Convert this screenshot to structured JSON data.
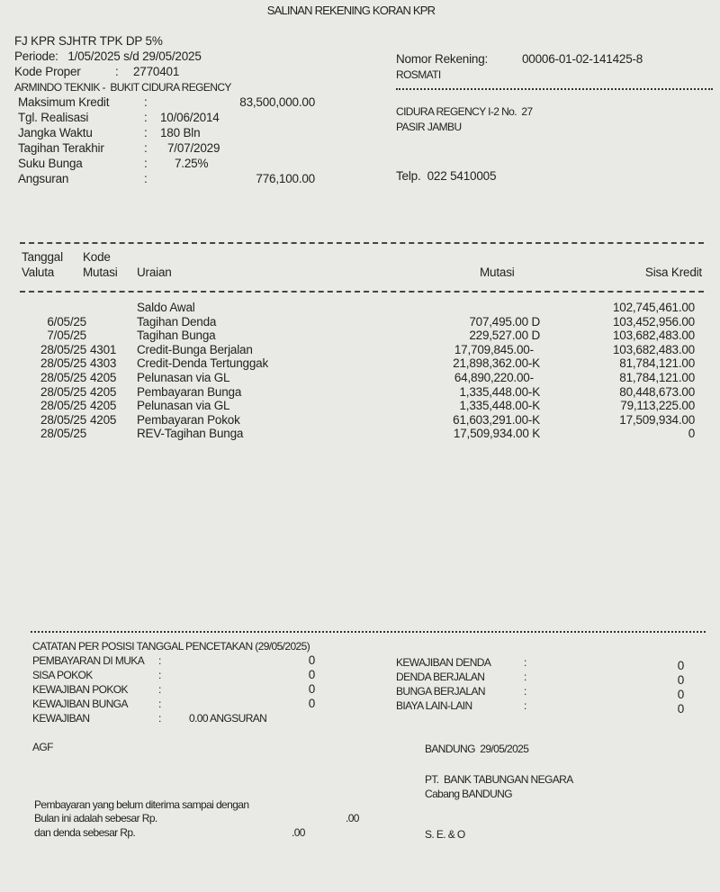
{
  "title": "SALINAN REKENING KORAN KPR",
  "header_left": {
    "product": "FJ KPR SJHTR TPK DP 5%",
    "periode": "Periode:   1/05/2025 s/d 29/05/2025",
    "kode_proper_label": "Kode Proper",
    "kode_proper": "2770401",
    "project": "ARMINDO TEKNIK -  BUKIT CIDURA REGENCY",
    "fields": [
      {
        "label": "Maksimum Kredit",
        "value": "83,500,000.00"
      },
      {
        "label": "Tgl. Realisasi",
        "value": "10/06/2014"
      },
      {
        "label": "Jangka Waktu",
        "value": "180 Bln"
      },
      {
        "label": "Tagihan Terakhir",
        "value": "7/07/2029"
      },
      {
        "label": "Suku Bunga",
        "value": "7.25%"
      },
      {
        "label": "Angsuran",
        "value": "776,100.00"
      }
    ]
  },
  "header_right": {
    "account_label": "Nomor Rekening:",
    "account_number": "00006-01-02-141425-8",
    "name": "ROSMATI",
    "address1": "CIDURA REGENCY I-2 No.  27",
    "address2": "PASIR JAMBU",
    "phone": "Telp.  022 5410005"
  },
  "table": {
    "headers": {
      "tanggal": "Tanggal",
      "valuta": "Valuta",
      "kode": "Kode",
      "mutasi_code": "Mutasi",
      "uraian": "Uraian",
      "mutasi": "Mutasi",
      "sisa": "Sisa Kredit"
    },
    "rows": [
      {
        "date": "",
        "code": "",
        "desc": "Saldo Awal",
        "mutasi": "",
        "sisa": "102,745,461.00"
      },
      {
        "date": "6/05/25",
        "code": "",
        "desc": "Tagihan Denda",
        "mutasi": "707,495.00 D",
        "sisa": "103,452,956.00"
      },
      {
        "date": "7/05/25",
        "code": "",
        "desc": "Tagihan Bunga",
        "mutasi": "229,527.00 D",
        "sisa": "103,682,483.00"
      },
      {
        "date": "28/05/25",
        "code": "4301",
        "desc": "Credit-Bunga Berjalan",
        "mutasi": "17,709,845.00-  ",
        "sisa": "103,682,483.00"
      },
      {
        "date": "28/05/25",
        "code": "4303",
        "desc": "Credit-Denda Tertunggak",
        "mutasi": "21,898,362.00-K",
        "sisa": "81,784,121.00"
      },
      {
        "date": "28/05/25",
        "code": "4205",
        "desc": "Pelunasan via GL",
        "mutasi": "64,890,220.00-  ",
        "sisa": "81,784,121.00"
      },
      {
        "date": "28/05/25",
        "code": "4205",
        "desc": "Pembayaran Bunga",
        "mutasi": "1,335,448.00-K",
        "sisa": "80,448,673.00"
      },
      {
        "date": "28/05/25",
        "code": "4205",
        "desc": "Pelunasan via GL",
        "mutasi": "1,335,448.00-K",
        "sisa": "79,113,225.00"
      },
      {
        "date": "28/05/25",
        "code": "4205",
        "desc": "Pembayaran Pokok",
        "mutasi": "61,603,291.00-K",
        "sisa": "17,509,934.00"
      },
      {
        "date": "28/05/25",
        "code": "",
        "desc": "REV-Tagihan Bunga",
        "mutasi": "17,509,934.00 K",
        "sisa": "0"
      }
    ]
  },
  "catatan": {
    "title": "CATATAN PER POSISI TANGGAL PENCETAKAN (29/05/2025)",
    "left": [
      {
        "label": "PEMBAYARAN DI MUKA",
        "value": "0"
      },
      {
        "label": "SISA POKOK",
        "value": "0"
      },
      {
        "label": "KEWAJIBAN POKOK",
        "value": "0"
      },
      {
        "label": "KEWAJIBAN BUNGA",
        "value": "0"
      }
    ],
    "kewajiban_label": "KEWAJIBAN",
    "kewajiban_value": "0.00 ANGSURAN",
    "right": [
      {
        "label": "KEWAJIBAN DENDA",
        "value": "0"
      },
      {
        "label": "DENDA BERJALAN",
        "value": "0"
      },
      {
        "label": "BUNGA BERJALAN",
        "value": "0"
      },
      {
        "label": "BIAYA LAIN-LAIN",
        "value": "0"
      }
    ]
  },
  "footer": {
    "code": "AGF",
    "place_date": "BANDUNG  29/05/2025",
    "bank": "PT.  BANK TABUNGAN NEGARA",
    "branch": "Cabang BANDUNG",
    "note1": "Pembayaran yang belum diterima sampai dengan",
    "note2": "Bulan ini adalah sebesar Rp.",
    "note2_value": ".00",
    "note3": "dan denda sebesar Rp.",
    "note3_value": ".00",
    "signature": "S. E. & O"
  }
}
